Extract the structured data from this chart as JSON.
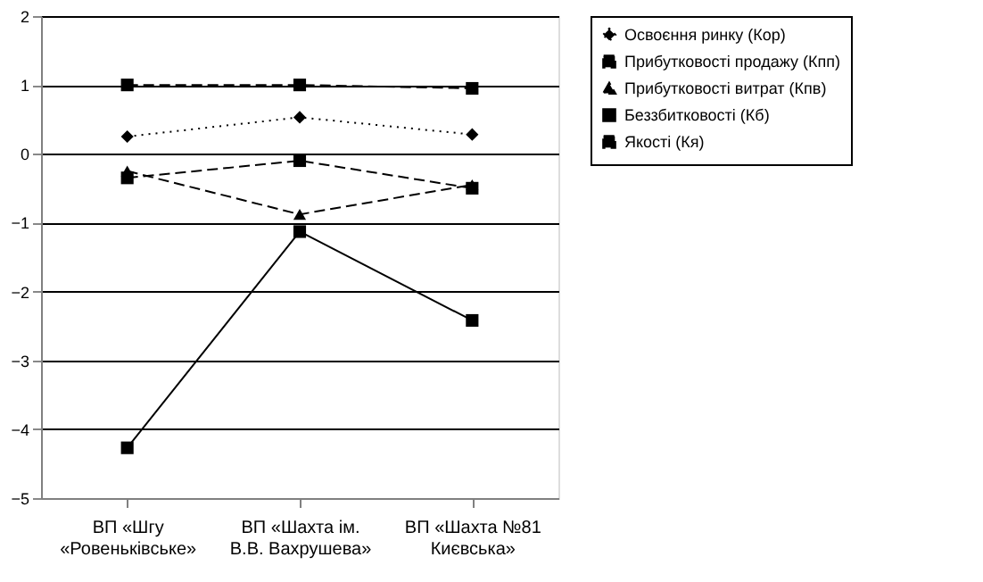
{
  "chart_data": {
    "type": "line",
    "categories": [
      "ВП «Шгу\n«Ровеньківське»",
      "ВП «Шахта ім.\nВ.В. Вахрушева»",
      "ВП «Шахта №81\nКиєвська»"
    ],
    "series": [
      {
        "name": "Освоєння ринку (Кор)",
        "color": "#000000",
        "marker": "diamond",
        "line_style": "dotted",
        "values": [
          0.25,
          0.53,
          0.28
        ]
      },
      {
        "name": "Прибутковості продажу (Кпп)",
        "color": "#000000",
        "marker": "square",
        "line_style": "dashed",
        "values": [
          -0.35,
          -0.1,
          -0.5
        ]
      },
      {
        "name": "Прибутковості витрат (Кпв)",
        "color": "#000000",
        "marker": "triangle",
        "line_style": "dashed",
        "values": [
          -0.25,
          -0.88,
          -0.45
        ]
      },
      {
        "name": "Беззбитковості (Кб)",
        "color": "#000000",
        "marker": "square",
        "line_style": "solid",
        "values": [
          -4.27,
          -1.13,
          -2.42
        ]
      },
      {
        "name": "Якості (Кя)",
        "color": "#000000",
        "marker": "square",
        "line_style": "dashed",
        "values": [
          1.0,
          1.0,
          0.95
        ]
      }
    ],
    "ylim": [
      -5,
      2
    ],
    "yticks": [
      -5,
      -4,
      -3,
      -2,
      -1,
      0,
      1,
      2
    ],
    "grid": "y",
    "legend": "right"
  }
}
